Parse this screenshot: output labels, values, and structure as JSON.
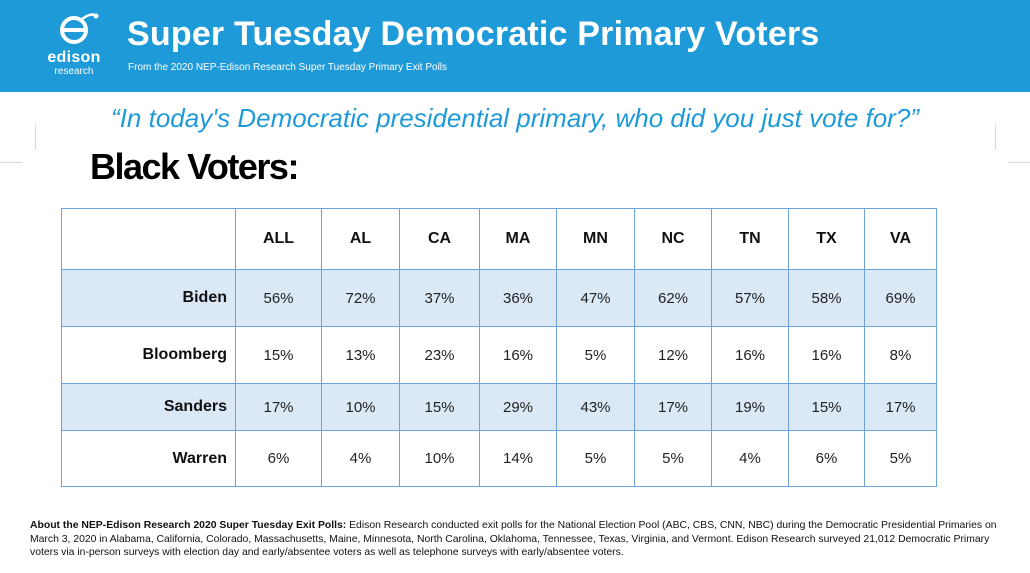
{
  "header": {
    "logo_brand": "edison",
    "logo_sub": "research",
    "title": "Super Tuesday Democratic Primary Voters",
    "subtitle": "From the 2020 NEP-Edison Research Super Tuesday Primary Exit Polls",
    "background_color": "#1f9ad9"
  },
  "question": "“In today's Democratic presidential primary, who did you just vote for?”",
  "section_title": "Black Voters:",
  "table": {
    "columns": [
      "ALL",
      "AL",
      "CA",
      "MA",
      "MN",
      "NC",
      "TN",
      "TX",
      "VA"
    ],
    "rows": [
      {
        "candidate": "Biden",
        "values": [
          "56%",
          "72%",
          "37%",
          "36%",
          "47%",
          "62%",
          "57%",
          "58%",
          "69%"
        ]
      },
      {
        "candidate": "Bloomberg",
        "values": [
          "15%",
          "13%",
          "23%",
          "16%",
          "5%",
          "12%",
          "16%",
          "16%",
          "8%"
        ]
      },
      {
        "candidate": "Sanders",
        "values": [
          "17%",
          "10%",
          "15%",
          "29%",
          "43%",
          "17%",
          "19%",
          "15%",
          "17%"
        ]
      },
      {
        "candidate": "Warren",
        "values": [
          "6%",
          "4%",
          "10%",
          "14%",
          "5%",
          "5%",
          "4%",
          "6%",
          "5%"
        ]
      }
    ],
    "shaded_row_color": "#dbe8f5",
    "border_color": "#6fa3d8"
  },
  "footer": {
    "bold": "About the NEP-Edison Research 2020 Super Tuesday Exit Polls:",
    "text": " Edison Research conducted exit polls for the National Election Pool (ABC, CBS, CNN, NBC) during the Democratic Presidential Primaries on March 3, 2020 in Alabama, California, Colorado, Massachusetts, Maine, Minnesota, North Carolina, Oklahoma, Tennessee, Texas, Virginia, and Vermont. Edison Research surveyed 21,012 Democratic Primary voters via in-person surveys with election day and early/absentee voters as well as telephone surveys with early/absentee voters."
  }
}
